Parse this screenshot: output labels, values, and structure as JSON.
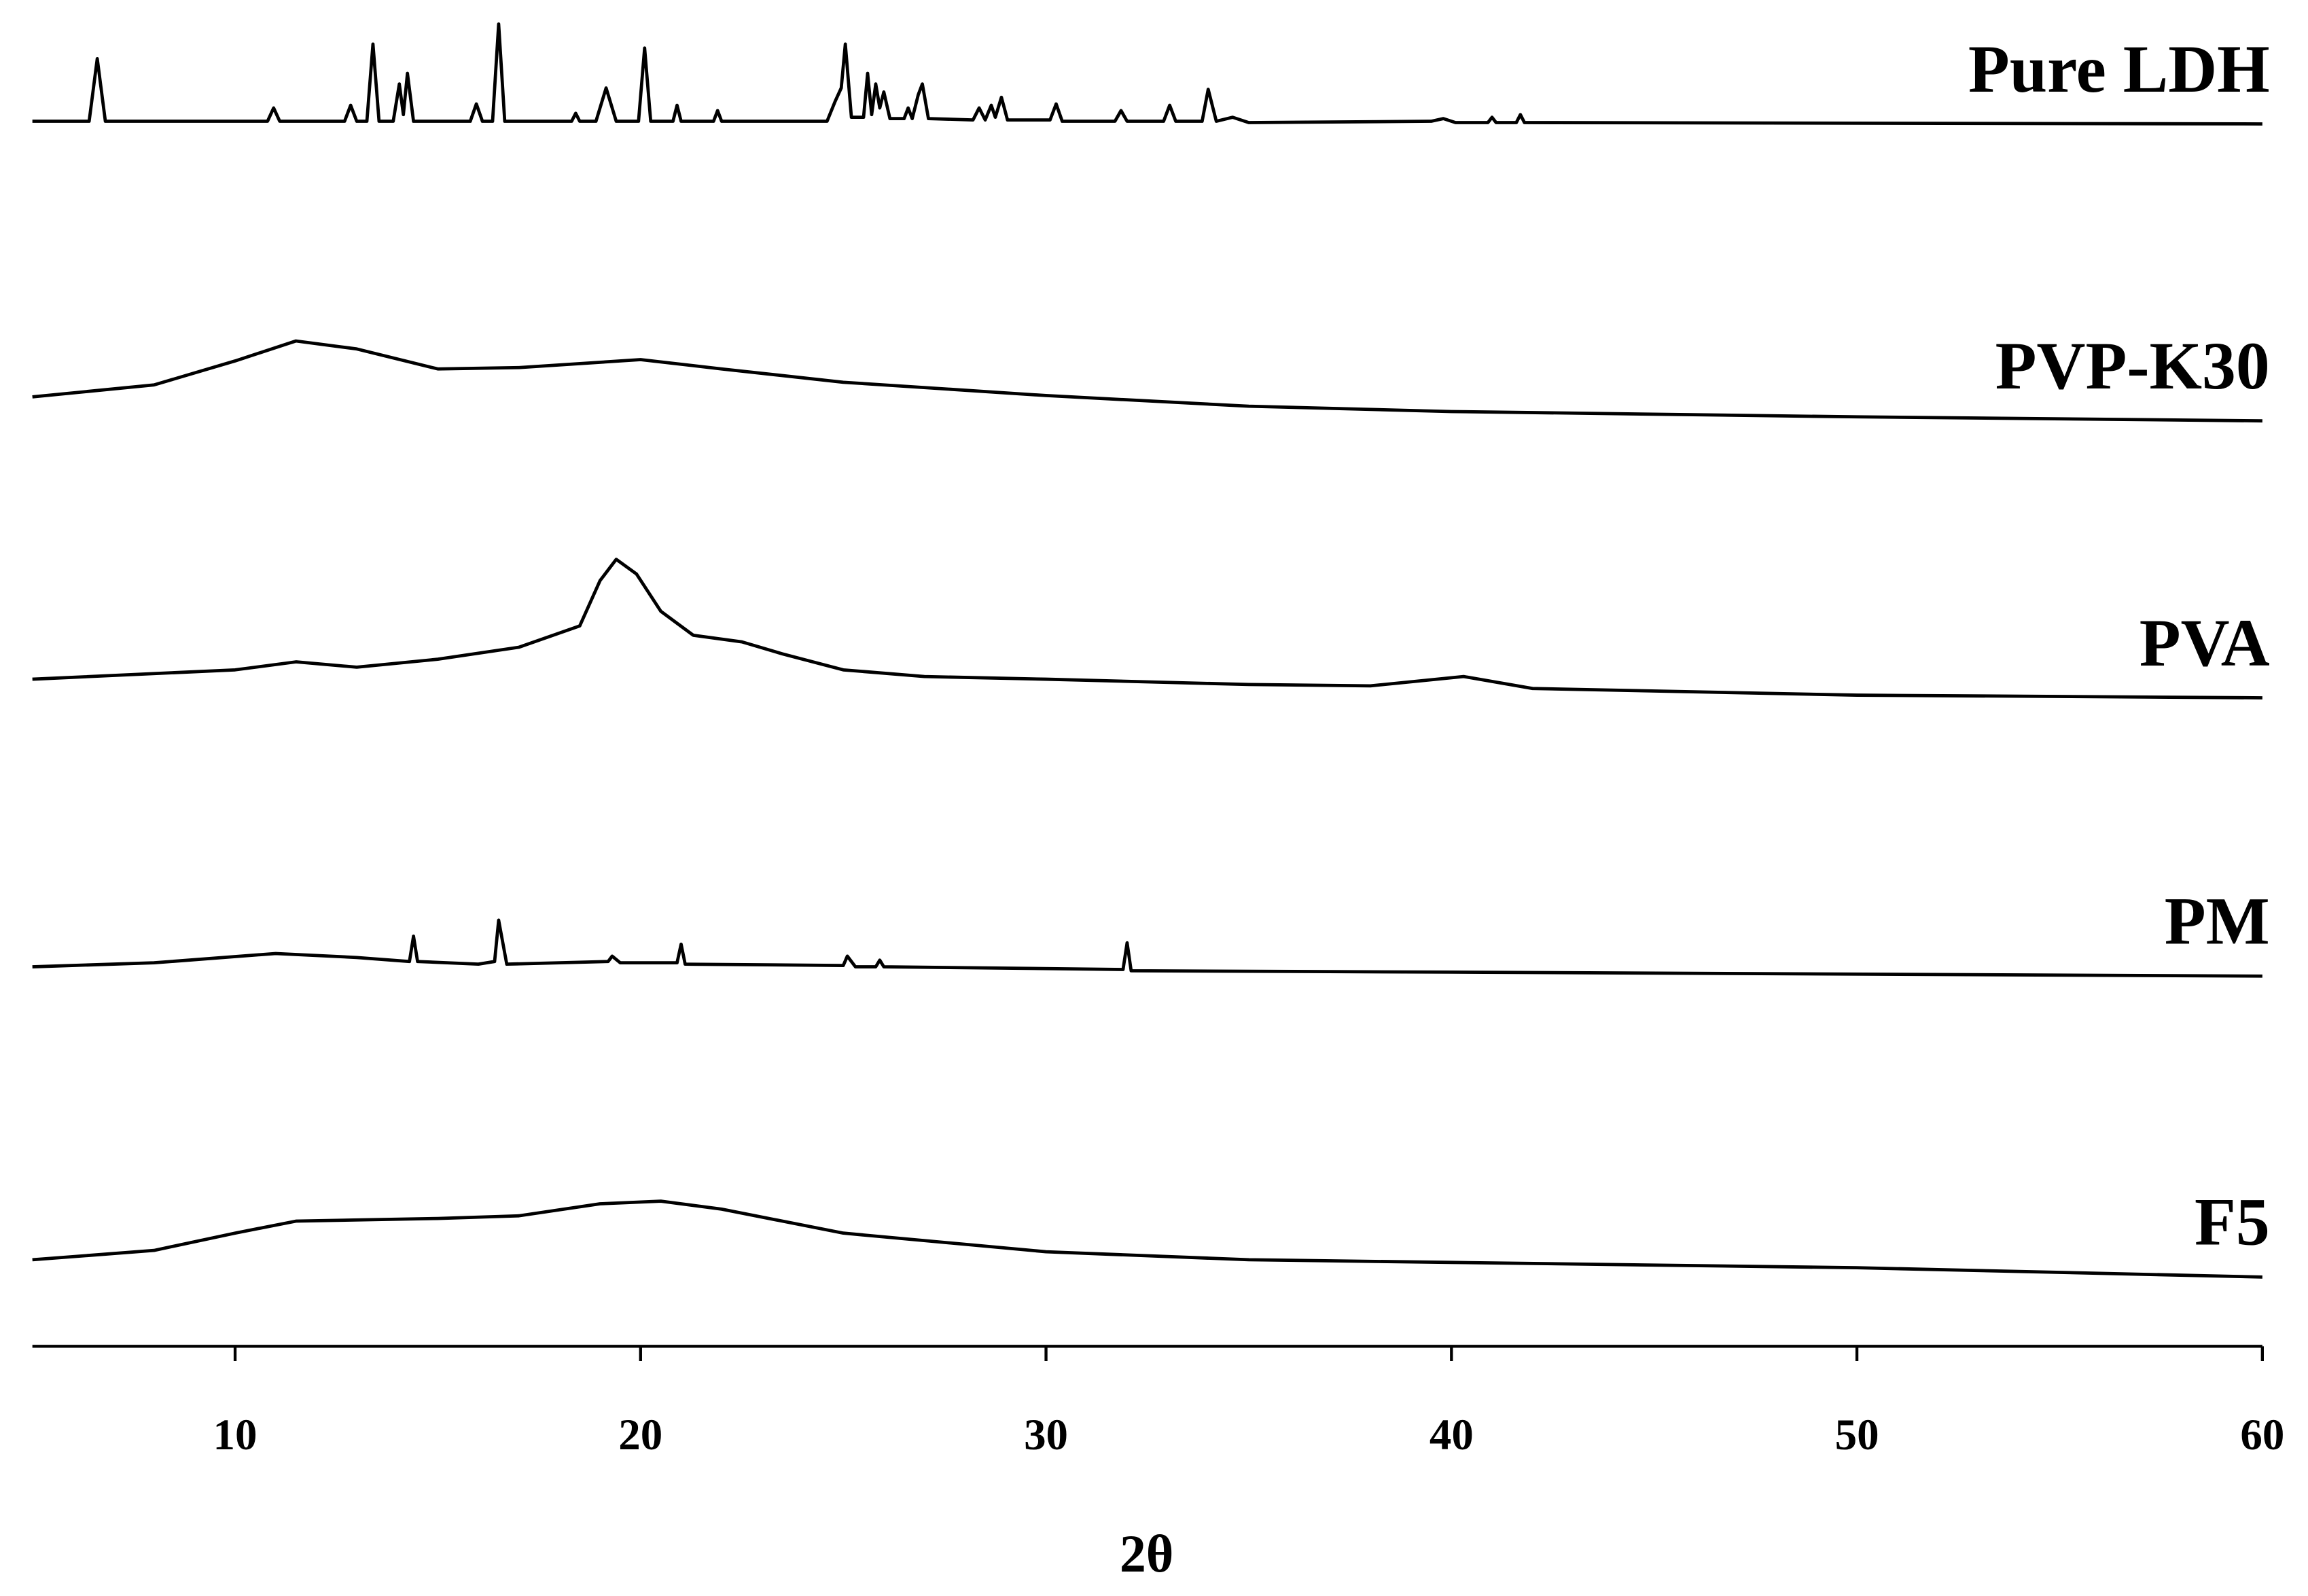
{
  "chart_data": {
    "type": "line",
    "xlabel": "2θ",
    "xlim": [
      5,
      60
    ],
    "xticks": [
      10,
      20,
      30,
      40,
      50,
      60
    ],
    "ylim": [
      0,
      100
    ],
    "series": [
      {
        "name": "Pure LDH",
        "color": "#000000",
        "x": [
          5,
          6.4,
          6.6,
          6.8,
          10.8,
          10.95,
          11.1,
          12.7,
          12.85,
          13.0,
          13.25,
          13.4,
          13.55,
          13.9,
          14.05,
          14.15,
          14.25,
          14.4,
          15.8,
          15.95,
          16.1,
          16.35,
          16.5,
          16.65,
          18.3,
          18.4,
          18.5,
          18.9,
          19.15,
          19.4,
          19.95,
          20.1,
          20.25,
          20.8,
          20.9,
          21.0,
          21.8,
          21.9,
          22.0,
          24.6,
          24.8,
          24.95,
          25.05,
          25.2,
          25.5,
          25.6,
          25.7,
          25.8,
          25.9,
          26.0,
          26.15,
          26.5,
          26.6,
          26.7,
          26.85,
          26.95,
          27.1,
          28.2,
          28.35,
          28.5,
          28.65,
          28.75,
          28.9,
          29.05,
          30.1,
          30.25,
          30.4,
          31.7,
          31.85,
          32.0,
          32.9,
          33.05,
          33.2,
          33.85,
          34.0,
          34.2,
          34.6,
          35.0,
          39.5,
          39.8,
          40.1,
          40.9,
          41.0,
          41.1,
          41.6,
          41.7,
          41.8,
          60
        ],
        "values": [
          92.0,
          92.0,
          96.7,
          92.0,
          92.0,
          93.0,
          92.0,
          92.0,
          93.2,
          92.0,
          92.0,
          97.8,
          92.0,
          92.0,
          94.8,
          92.5,
          95.6,
          92.0,
          92.0,
          93.3,
          92.0,
          92.0,
          99.3,
          92.0,
          92.0,
          92.6,
          92.0,
          92.0,
          94.5,
          92.0,
          92.0,
          97.5,
          92.0,
          92.0,
          93.2,
          92.0,
          92.0,
          92.8,
          92.0,
          92.0,
          93.5,
          94.5,
          97.8,
          92.3,
          92.3,
          95.6,
          92.5,
          94.8,
          93.0,
          94.2,
          92.2,
          92.2,
          93.0,
          92.2,
          94.0,
          94.8,
          92.2,
          92.1,
          93.0,
          92.1,
          93.2,
          92.3,
          93.8,
          92.1,
          92.1,
          93.3,
          92.0,
          92.0,
          92.8,
          92.0,
          92.0,
          93.2,
          92.0,
          92.0,
          94.4,
          92.0,
          92.3,
          91.9,
          92.0,
          92.2,
          91.9,
          91.9,
          92.3,
          91.9,
          91.9,
          92.5,
          91.9,
          91.8
        ]
      },
      {
        "name": "PVP-K30",
        "color": "#000000",
        "x": [
          5,
          8,
          10,
          11.5,
          13,
          15,
          17,
          20,
          22,
          25,
          30,
          35,
          40,
          50,
          60
        ],
        "values": [
          71.3,
          72.2,
          74.0,
          75.5,
          74.9,
          73.4,
          73.5,
          74.1,
          73.4,
          72.4,
          71.4,
          70.6,
          70.2,
          69.8,
          69.5
        ]
      },
      {
        "name": "PVA",
        "color": "#000000",
        "x": [
          5,
          10,
          11.5,
          13,
          15,
          17,
          18.5,
          19,
          19.4,
          19.9,
          20.5,
          21.3,
          22.5,
          23.5,
          25,
          27,
          30,
          35,
          38,
          40.3,
          42,
          50,
          60
        ],
        "values": [
          50.1,
          50.8,
          51.4,
          51.0,
          51.6,
          52.5,
          54.1,
          57.5,
          59.1,
          58.0,
          55.2,
          53.4,
          52.9,
          52.0,
          50.8,
          50.3,
          50.1,
          49.7,
          49.6,
          50.3,
          49.4,
          48.9,
          48.7
        ]
      },
      {
        "name": "PM",
        "color": "#000000",
        "x": [
          5,
          8,
          11,
          13,
          14.3,
          14.4,
          14.5,
          16.0,
          16.4,
          16.5,
          16.7,
          19.2,
          19.3,
          19.5,
          20.9,
          21.0,
          21.1,
          25.0,
          25.1,
          25.3,
          25.8,
          25.9,
          26.0,
          31.9,
          32.0,
          32.1,
          40,
          60
        ],
        "values": [
          28.5,
          28.8,
          29.5,
          29.2,
          28.9,
          30.8,
          28.9,
          28.7,
          28.9,
          32.0,
          28.7,
          28.9,
          29.3,
          28.8,
          28.8,
          30.2,
          28.7,
          28.6,
          29.3,
          28.5,
          28.5,
          29.0,
          28.5,
          28.3,
          30.3,
          28.2,
          28.1,
          27.8
        ]
      },
      {
        "name": "F5",
        "color": "#000000",
        "x": [
          5,
          8,
          10,
          11.5,
          15,
          17,
          19,
          20.5,
          22,
          25,
          30,
          35,
          40,
          50,
          60
        ],
        "values": [
          6.5,
          7.2,
          8.5,
          9.4,
          9.6,
          9.8,
          10.7,
          10.9,
          10.3,
          8.5,
          7.1,
          6.5,
          6.3,
          5.9,
          5.2
        ]
      }
    ]
  }
}
